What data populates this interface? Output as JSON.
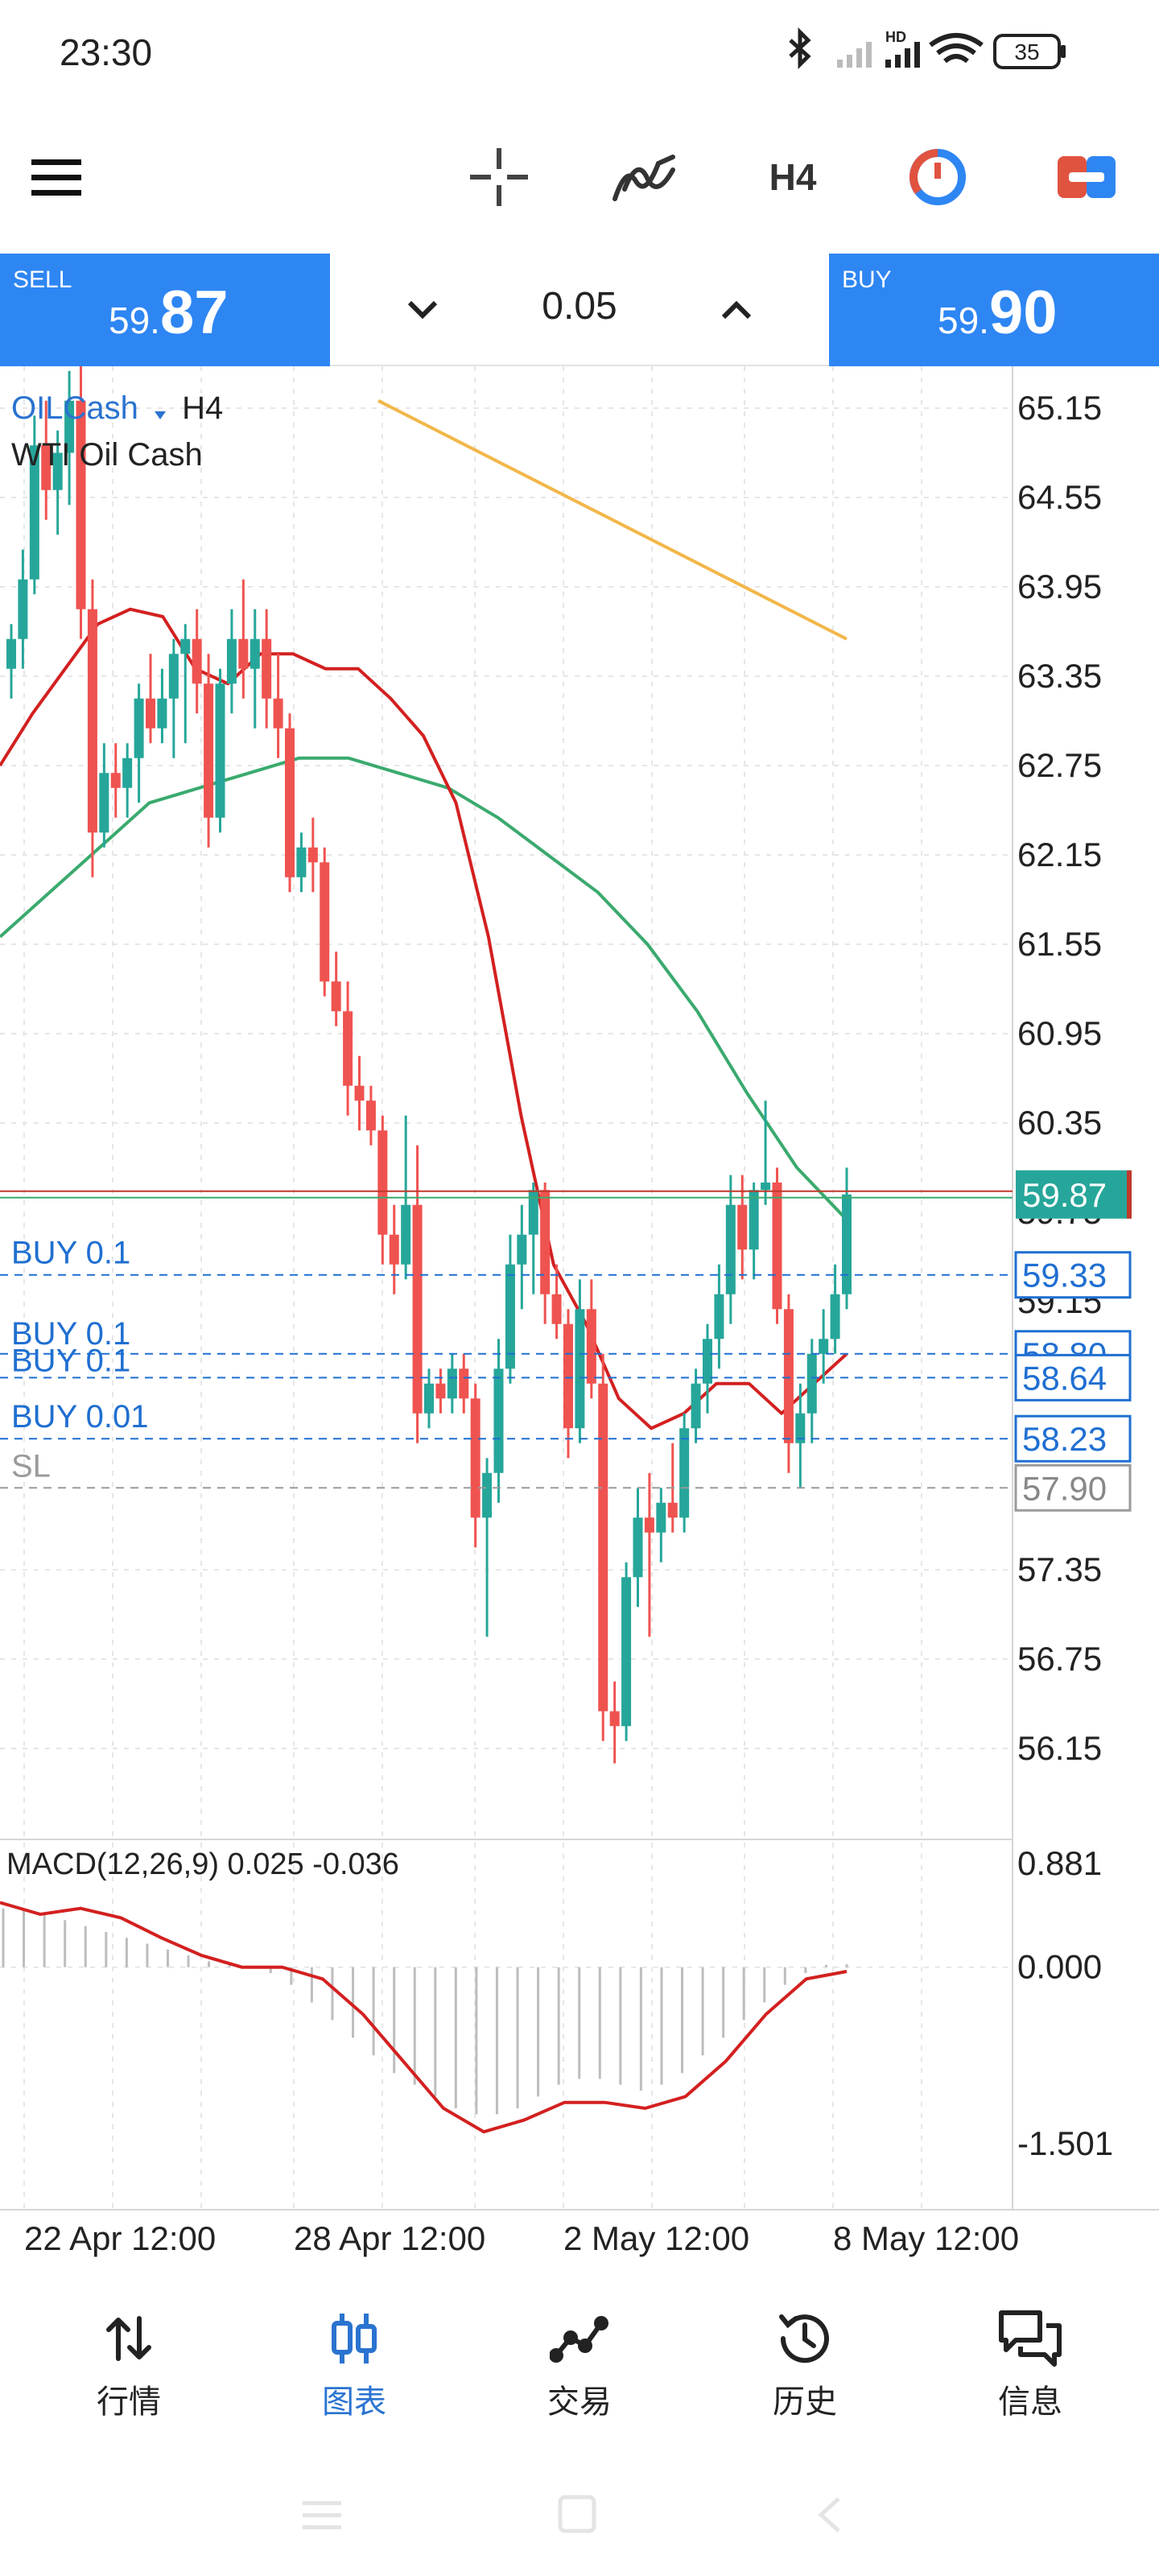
{
  "status_bar": {
    "time": "23:30",
    "battery": "35",
    "network_badge": "HD",
    "icons": [
      "bluetooth-icon",
      "signal-weak-icon",
      "signal-hd-icon",
      "wifi-icon",
      "battery-icon"
    ]
  },
  "toolbar": {
    "menu_icon": "hamburger-menu-icon",
    "crosshair_icon": "crosshair-icon",
    "indicators_icon": "indicator-wave-icon",
    "timeframe": "H4",
    "history_icon": "pie-timer-icon",
    "trade_icon": "trade-toggle-icon"
  },
  "trade_bar": {
    "sell_label": "SELL",
    "sell_price_prefix": "59.",
    "sell_price_main": "87",
    "buy_label": "BUY",
    "buy_price_prefix": "59.",
    "buy_price_main": "90",
    "lot": "0.05",
    "decrease_icon": "chevron-down-icon",
    "increase_icon": "chevron-up-icon"
  },
  "chart": {
    "symbol": "OILCash",
    "symbol_dropdown_icon": "triangle-down-icon",
    "timeframe": "H4",
    "description": "WTI Oil Cash",
    "current_price": "59.87",
    "order_lines": [
      {
        "label": "BUY 0.1",
        "price": "59.33"
      },
      {
        "label": "BUY 0.1",
        "price": "58.80"
      },
      {
        "label": "BUY 0.1",
        "price": "58.64"
      },
      {
        "label": "BUY 0.01",
        "price": "58.23"
      },
      {
        "label": "SL",
        "price": "57.90"
      }
    ],
    "obscured_axis_labels": [
      "59.75",
      "59.15"
    ],
    "colors": {
      "bull": "#26a69a",
      "bear": "#ef5350",
      "ma_fast": "#d32020",
      "ma_mid": "#3aaa6e",
      "ma_slow": "#f2b74a",
      "order_line": "#1f6fd1",
      "sl_line": "#9a9a9a",
      "price_tag": "#26a69a"
    },
    "macd_label": "MACD(12,26,9) 0.025 -0.036"
  },
  "chart_data": [
    {
      "type": "candlestick",
      "title": "OILCash H4",
      "ylim": [
        55.85,
        65.5
      ],
      "y_ticks": [
        "65.15",
        "64.55",
        "63.95",
        "63.35",
        "62.75",
        "62.15",
        "61.55",
        "60.95",
        "60.35",
        "57.35",
        "56.75",
        "56.15"
      ],
      "x_ticks": [
        "22 Apr 12:00",
        "28 Apr 12:00",
        "2 May 12:00",
        "8 May 12:00"
      ],
      "candles": [
        {
          "o": 63.4,
          "h": 63.7,
          "l": 63.2,
          "c": 63.6
        },
        {
          "o": 63.6,
          "h": 64.2,
          "l": 63.4,
          "c": 64.0
        },
        {
          "o": 64.0,
          "h": 65.1,
          "l": 63.9,
          "c": 64.9
        },
        {
          "o": 64.9,
          "h": 65.2,
          "l": 64.4,
          "c": 64.6
        },
        {
          "o": 64.6,
          "h": 65.0,
          "l": 64.3,
          "c": 64.85
        },
        {
          "o": 64.85,
          "h": 65.4,
          "l": 64.5,
          "c": 65.2
        },
        {
          "o": 65.2,
          "h": 65.5,
          "l": 63.6,
          "c": 63.8
        },
        {
          "o": 63.8,
          "h": 64.0,
          "l": 62.0,
          "c": 62.3
        },
        {
          "o": 62.3,
          "h": 62.9,
          "l": 62.2,
          "c": 62.7
        },
        {
          "o": 62.7,
          "h": 62.9,
          "l": 62.4,
          "c": 62.6
        },
        {
          "o": 62.6,
          "h": 62.9,
          "l": 62.4,
          "c": 62.8
        },
        {
          "o": 62.8,
          "h": 63.3,
          "l": 62.5,
          "c": 63.2
        },
        {
          "o": 63.2,
          "h": 63.5,
          "l": 62.9,
          "c": 63.0
        },
        {
          "o": 63.0,
          "h": 63.4,
          "l": 62.9,
          "c": 63.2
        },
        {
          "o": 63.2,
          "h": 63.6,
          "l": 62.8,
          "c": 63.5
        },
        {
          "o": 63.5,
          "h": 63.7,
          "l": 62.9,
          "c": 63.6
        },
        {
          "o": 63.6,
          "h": 63.8,
          "l": 63.1,
          "c": 63.3
        },
        {
          "o": 63.3,
          "h": 63.5,
          "l": 62.2,
          "c": 62.4
        },
        {
          "o": 62.4,
          "h": 63.4,
          "l": 62.3,
          "c": 63.3
        },
        {
          "o": 63.3,
          "h": 63.8,
          "l": 63.1,
          "c": 63.6
        },
        {
          "o": 63.6,
          "h": 64.0,
          "l": 63.2,
          "c": 63.4
        },
        {
          "o": 63.4,
          "h": 63.8,
          "l": 63.0,
          "c": 63.6
        },
        {
          "o": 63.6,
          "h": 63.8,
          "l": 63.0,
          "c": 63.2
        },
        {
          "o": 63.2,
          "h": 63.5,
          "l": 62.8,
          "c": 63.0
        },
        {
          "o": 63.0,
          "h": 63.1,
          "l": 61.9,
          "c": 62.0
        },
        {
          "o": 62.0,
          "h": 62.3,
          "l": 61.9,
          "c": 62.2
        },
        {
          "o": 62.2,
          "h": 62.4,
          "l": 61.9,
          "c": 62.1
        },
        {
          "o": 62.1,
          "h": 62.2,
          "l": 61.2,
          "c": 61.3
        },
        {
          "o": 61.3,
          "h": 61.5,
          "l": 61.0,
          "c": 61.1
        },
        {
          "o": 61.1,
          "h": 61.3,
          "l": 60.4,
          "c": 60.6
        },
        {
          "o": 60.6,
          "h": 60.8,
          "l": 60.3,
          "c": 60.5
        },
        {
          "o": 60.5,
          "h": 60.6,
          "l": 60.2,
          "c": 60.3
        },
        {
          "o": 60.3,
          "h": 60.4,
          "l": 59.4,
          "c": 59.6
        },
        {
          "o": 59.6,
          "h": 59.8,
          "l": 59.2,
          "c": 59.4
        },
        {
          "o": 59.4,
          "h": 60.4,
          "l": 59.3,
          "c": 59.8
        },
        {
          "o": 59.8,
          "h": 60.2,
          "l": 58.2,
          "c": 58.4
        },
        {
          "o": 58.4,
          "h": 58.7,
          "l": 58.3,
          "c": 58.6
        },
        {
          "o": 58.6,
          "h": 58.7,
          "l": 58.4,
          "c": 58.5
        },
        {
          "o": 58.5,
          "h": 58.8,
          "l": 58.4,
          "c": 58.7
        },
        {
          "o": 58.7,
          "h": 58.8,
          "l": 58.4,
          "c": 58.5
        },
        {
          "o": 58.5,
          "h": 58.6,
          "l": 57.5,
          "c": 57.7
        },
        {
          "o": 57.7,
          "h": 58.1,
          "l": 56.9,
          "c": 58.0
        },
        {
          "o": 58.0,
          "h": 58.9,
          "l": 57.8,
          "c": 58.7
        },
        {
          "o": 58.7,
          "h": 59.6,
          "l": 58.6,
          "c": 59.4
        },
        {
          "o": 59.4,
          "h": 59.8,
          "l": 59.1,
          "c": 59.6
        },
        {
          "o": 59.6,
          "h": 59.95,
          "l": 59.2,
          "c": 59.9
        },
        {
          "o": 59.9,
          "h": 59.95,
          "l": 59.0,
          "c": 59.2
        },
        {
          "o": 59.2,
          "h": 59.4,
          "l": 58.9,
          "c": 59.0
        },
        {
          "o": 59.0,
          "h": 59.1,
          "l": 58.1,
          "c": 58.3
        },
        {
          "o": 58.3,
          "h": 59.3,
          "l": 58.2,
          "c": 59.1
        },
        {
          "o": 59.1,
          "h": 59.3,
          "l": 58.5,
          "c": 58.6
        },
        {
          "o": 58.6,
          "h": 58.8,
          "l": 56.2,
          "c": 56.4
        },
        {
          "o": 56.4,
          "h": 56.6,
          "l": 56.05,
          "c": 56.3
        },
        {
          "o": 56.3,
          "h": 57.4,
          "l": 56.2,
          "c": 57.3
        },
        {
          "o": 57.3,
          "h": 57.9,
          "l": 57.1,
          "c": 57.7
        },
        {
          "o": 57.7,
          "h": 58.0,
          "l": 56.9,
          "c": 57.6
        },
        {
          "o": 57.6,
          "h": 57.9,
          "l": 57.4,
          "c": 57.8
        },
        {
          "o": 57.8,
          "h": 58.2,
          "l": 57.6,
          "c": 57.7
        },
        {
          "o": 57.7,
          "h": 58.4,
          "l": 57.6,
          "c": 58.3
        },
        {
          "o": 58.3,
          "h": 58.7,
          "l": 58.2,
          "c": 58.6
        },
        {
          "o": 58.6,
          "h": 59.0,
          "l": 58.4,
          "c": 58.9
        },
        {
          "o": 58.9,
          "h": 59.4,
          "l": 58.7,
          "c": 59.2
        },
        {
          "o": 59.2,
          "h": 60.0,
          "l": 59.0,
          "c": 59.8
        },
        {
          "o": 59.8,
          "h": 60.0,
          "l": 59.3,
          "c": 59.5
        },
        {
          "o": 59.5,
          "h": 59.95,
          "l": 59.3,
          "c": 59.9
        },
        {
          "o": 59.9,
          "h": 60.5,
          "l": 59.8,
          "c": 59.95
        },
        {
          "o": 59.95,
          "h": 60.05,
          "l": 59.0,
          "c": 59.1
        },
        {
          "o": 59.1,
          "h": 59.2,
          "l": 58.0,
          "c": 58.2
        },
        {
          "o": 58.2,
          "h": 58.6,
          "l": 57.9,
          "c": 58.4
        },
        {
          "o": 58.4,
          "h": 58.9,
          "l": 58.2,
          "c": 58.8
        },
        {
          "o": 58.8,
          "h": 59.1,
          "l": 58.6,
          "c": 58.9
        },
        {
          "o": 58.9,
          "h": 59.4,
          "l": 58.8,
          "c": 59.2
        },
        {
          "o": 59.2,
          "h": 60.05,
          "l": 59.1,
          "c": 59.87
        }
      ],
      "ma_fast": [
        62.75,
        63.1,
        63.4,
        63.7,
        63.8,
        63.75,
        63.4,
        63.3,
        63.5,
        63.5,
        63.4,
        63.4,
        63.2,
        62.95,
        62.5,
        61.6,
        60.4,
        59.4,
        59.0,
        58.5,
        58.3,
        58.4,
        58.6,
        58.6,
        58.4,
        58.6,
        58.8
      ],
      "ma_mid": [
        61.6,
        61.9,
        62.2,
        62.5,
        62.6,
        62.7,
        62.8,
        62.8,
        62.7,
        62.6,
        62.4,
        62.15,
        61.9,
        61.55,
        61.1,
        60.55,
        60.05,
        59.7
      ],
      "ma_slow": [
        65.2,
        65.0,
        64.8,
        64.6,
        64.4,
        64.2,
        64.0,
        63.8,
        63.6
      ]
    },
    {
      "type": "macd",
      "title": "MACD(12,26,9) 0.025 -0.036",
      "ylim": [
        -1.501,
        0.881
      ],
      "y_ticks": [
        "0.881",
        "0.000",
        "-1.501"
      ],
      "signal": [
        0.55,
        0.45,
        0.5,
        0.42,
        0.25,
        0.1,
        0.0,
        0.0,
        -0.1,
        -0.4,
        -0.8,
        -1.2,
        -1.4,
        -1.3,
        -1.15,
        -1.15,
        -1.2,
        -1.1,
        -0.8,
        -0.4,
        -0.1,
        -0.036
      ],
      "histogram": [
        0.5,
        0.5,
        0.45,
        0.4,
        0.35,
        0.3,
        0.25,
        0.2,
        0.15,
        0.1,
        0.05,
        0.02,
        0.0,
        -0.05,
        -0.15,
        -0.3,
        -0.45,
        -0.6,
        -0.75,
        -0.9,
        -1.0,
        -1.1,
        -1.2,
        -1.25,
        -1.25,
        -1.2,
        -1.1,
        -1.0,
        -0.95,
        -0.95,
        -1.0,
        -1.05,
        -1.0,
        -0.9,
        -0.75,
        -0.6,
        -0.45,
        -0.3,
        -0.15,
        -0.05,
        0.02,
        0.025
      ]
    }
  ],
  "bottom_nav": {
    "items": [
      {
        "label": "行情",
        "icon": "quotes-arrows-icon",
        "active": false
      },
      {
        "label": "图表",
        "icon": "candles-chart-icon",
        "active": true
      },
      {
        "label": "交易",
        "icon": "trade-line-icon",
        "active": false
      },
      {
        "label": "历史",
        "icon": "history-clock-icon",
        "active": false
      },
      {
        "label": "信息",
        "icon": "messages-chat-icon",
        "active": false
      }
    ]
  },
  "system_nav": {
    "icons": [
      "recents-icon",
      "home-icon",
      "back-icon"
    ]
  }
}
